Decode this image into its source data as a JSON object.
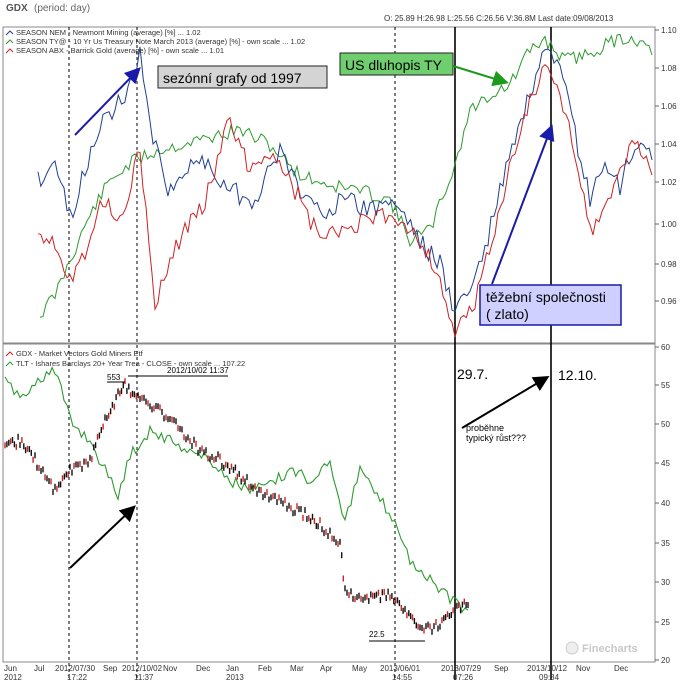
{
  "header": {
    "symbol": "GDX",
    "period": "(period: day)",
    "ohlc": "O: 25.89  H:26.98  L:25.56  C:26.56  V:36.8M  Last date:09/08/2013"
  },
  "chart_data": [
    {
      "type": "line",
      "panel": "top",
      "legend": [
        {
          "name": "SEASON NEM - Newmont Mining (average) [%] ... 1.02",
          "color": "#1f3f8f"
        },
        {
          "name": "SEASON TY@ - 10 Yr Us Treasury Note March 2013 (average) [%] - own scale ... 1.02",
          "color": "#2e9a2e"
        },
        {
          "name": "SEASON ABX - Barrick Gold (average) [%] - own scale ... 1.01",
          "color": "#cc2222"
        }
      ],
      "y_ticks": [
        "1.10",
        "1.08",
        "1.06",
        "1.04",
        "1.02",
        "1.00",
        "0.98",
        "0.96"
      ],
      "ylim": [
        0.942,
        1.102
      ],
      "legend_position": "top-left",
      "annotations": {
        "seasonal": "sezónní grafy od 1997",
        "bond": "US dluhopis TY",
        "miners_line1": "těžební společnosti",
        "miners_line2": "( zlato)"
      }
    },
    {
      "type": "line",
      "panel": "bottom",
      "legend": [
        {
          "name": "GDX - Market Vectors Gold Miners Etf",
          "color": "#cc2222"
        },
        {
          "name": "TLT - Ishares Barclays 20+ Year Trea - CLOSE - own scale ... 107.22",
          "color": "#2e9a2e"
        }
      ],
      "y_ticks": [
        "60",
        "55",
        "50",
        "45",
        "40",
        "35",
        "30",
        "25",
        "20"
      ],
      "ylim": [
        20,
        60
      ],
      "annotations": {
        "peak_value": "553",
        "peak_date": "2012/10/02 11:37",
        "low_value": "22.5",
        "date_1": "29.7.",
        "date_2": "12.10.",
        "question_line1": "proběhne",
        "question_line2": "typický růst???",
        "watermark": "Finecharts"
      }
    }
  ],
  "x_axis": {
    "labels": [
      {
        "t": "Jun",
        "sub": "2012"
      },
      {
        "t": "Jul",
        "sub": ""
      },
      {
        "t": "2012/07/30",
        "sub": "17:22"
      },
      {
        "t": "Sep",
        "sub": ""
      },
      {
        "t": "2012/10/02",
        "sub": "11:37"
      },
      {
        "t": "Nov",
        "sub": ""
      },
      {
        "t": "Dec",
        "sub": ""
      },
      {
        "t": "Jan",
        "sub": "2013"
      },
      {
        "t": "Feb",
        "sub": ""
      },
      {
        "t": "Mar",
        "sub": ""
      },
      {
        "t": "Apr",
        "sub": ""
      },
      {
        "t": "May",
        "sub": ""
      },
      {
        "t": "2013/06/01",
        "sub": "14:55"
      },
      {
        "t": "2013/07/29",
        "sub": "07:26"
      },
      {
        "t": "Sep",
        "sub": ""
      },
      {
        "t": "2013/10/12",
        "sub": "09:34"
      },
      {
        "t": "Nov",
        "sub": ""
      },
      {
        "t": "Dec",
        "sub": ""
      }
    ]
  }
}
